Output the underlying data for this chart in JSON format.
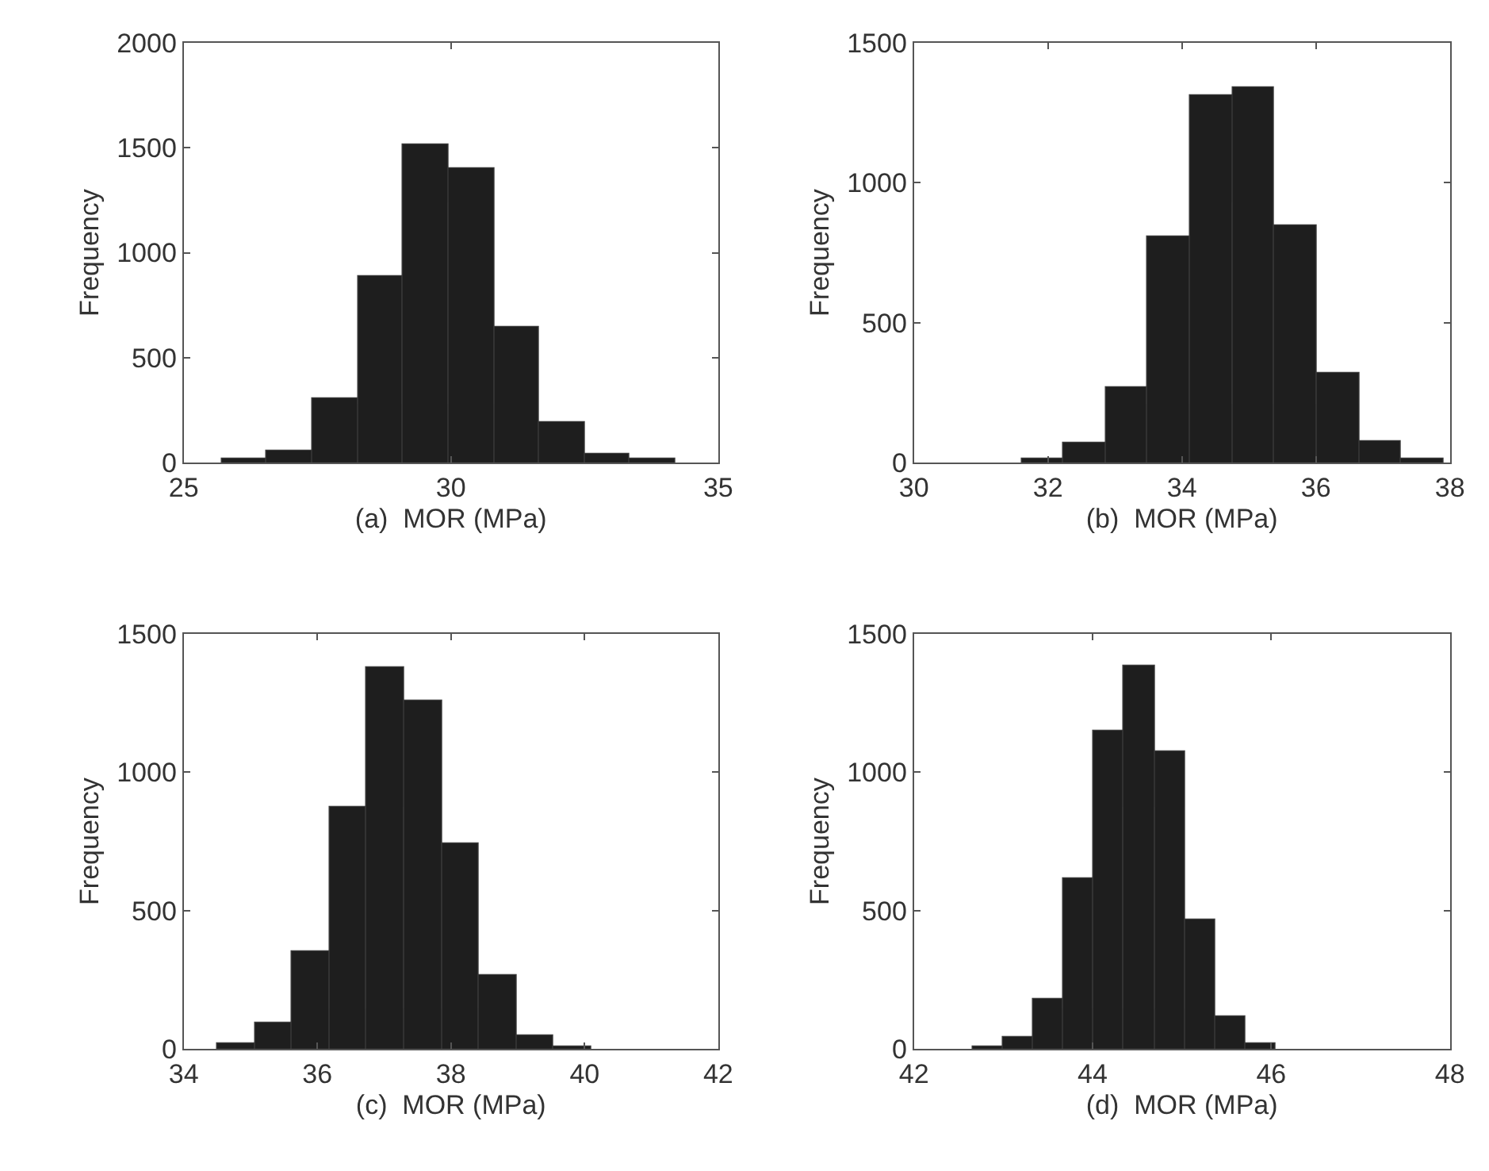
{
  "chart_data": [
    {
      "type": "histogram",
      "xlabel": "(a)  MOR (MPa)",
      "ylabel": "Frequency",
      "color": "#1e1e1e",
      "bins": [
        25.7,
        26.55,
        27.4,
        28.25,
        29.1,
        29.95,
        30.8,
        31.65,
        32.5,
        33.35,
        34.2
      ],
      "values": [
        17,
        60,
        310,
        890,
        1520,
        1400,
        650,
        190,
        45,
        17
      ],
      "xlim": [
        25,
        35
      ],
      "xticks": [
        25,
        30,
        35
      ],
      "ylim": [
        0,
        2000
      ],
      "yticks": [
        0,
        500,
        1000,
        1500,
        2000
      ]
    },
    {
      "type": "histogram",
      "xlabel": "(b)  MOR (MPa)",
      "ylabel": "Frequency",
      "color": "#1e1e1e",
      "bins": [
        31.6,
        32.23,
        32.86,
        33.49,
        34.12,
        34.75,
        35.38,
        36.01,
        36.64,
        37.27,
        37.9
      ],
      "values": [
        13,
        70,
        270,
        807,
        1312,
        1344,
        849,
        320,
        77,
        15
      ],
      "xlim": [
        30,
        38
      ],
      "xticks": [
        30,
        32,
        34,
        36,
        38
      ],
      "ylim": [
        0,
        1500
      ],
      "yticks": [
        0,
        500,
        1000,
        1500
      ]
    },
    {
      "type": "histogram",
      "xlabel": "(c)  MOR (MPa)",
      "ylabel": "Frequency",
      "color": "#1e1e1e",
      "bins": [
        34.5,
        35.06,
        35.62,
        36.18,
        36.74,
        37.3,
        37.86,
        38.42,
        38.98,
        39.54,
        40.1
      ],
      "values": [
        24,
        97,
        352,
        878,
        1382,
        1258,
        742,
        266,
        51,
        9
      ],
      "xlim": [
        34,
        42
      ],
      "xticks": [
        34,
        36,
        38,
        40,
        42
      ],
      "ylim": [
        0,
        1500
      ],
      "yticks": [
        0,
        500,
        1000,
        1500
      ]
    },
    {
      "type": "histogram",
      "xlabel": "(d)  MOR (MPa)",
      "ylabel": "Frequency",
      "color": "#1e1e1e",
      "bins": [
        42.65,
        42.99,
        43.33,
        43.67,
        44.01,
        44.35,
        44.69,
        45.03,
        45.37,
        45.71,
        46.05
      ],
      "values": [
        9,
        42,
        180,
        615,
        1151,
        1384,
        1074,
        468,
        119,
        20
      ],
      "xlim": [
        42,
        48
      ],
      "xticks": [
        42,
        44,
        46,
        48
      ],
      "ylim": [
        0,
        1500
      ],
      "yticks": [
        0,
        500,
        1000,
        1500
      ]
    }
  ]
}
